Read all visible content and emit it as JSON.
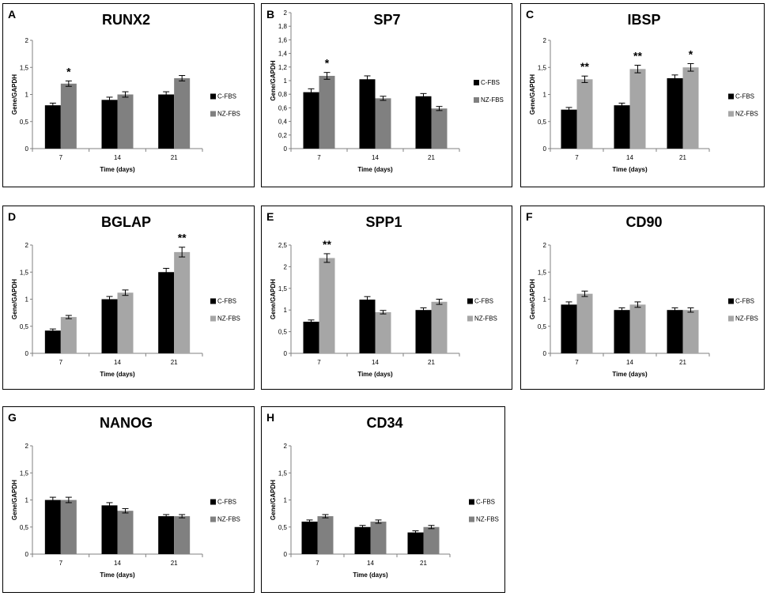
{
  "colors": {
    "c_fbs": "#000000",
    "nz_fbs_dark": "#808080",
    "nz_fbs_light": "#a6a6a6",
    "axis": "#808080"
  },
  "shared": {
    "ylabel": "Gene/GAPDH",
    "xlabel": "Time (days)",
    "categories": [
      "7",
      "14",
      "21"
    ],
    "series_names": [
      "C-FBS",
      "NZ-FBS"
    ]
  },
  "chart_data": [
    {
      "letter": "A",
      "title": "RUNX2",
      "type": "bar",
      "ylim": [
        0,
        2
      ],
      "yticks": [
        "0",
        "0,5",
        "1",
        "1,5",
        "2"
      ],
      "categories": [
        "7",
        "14",
        "21"
      ],
      "xlabel": "Time (days)",
      "ylabel": "Gene/GAPDH",
      "nz_color": "dark",
      "series": [
        {
          "name": "C-FBS",
          "values": [
            0.8,
            0.9,
            1.0
          ],
          "errors": [
            0.04,
            0.05,
            0.05
          ]
        },
        {
          "name": "NZ-FBS",
          "values": [
            1.2,
            1.0,
            1.3
          ],
          "errors": [
            0.05,
            0.05,
            0.05
          ]
        }
      ],
      "annotations": [
        "*",
        "",
        ""
      ]
    },
    {
      "letter": "B",
      "title": "SP7",
      "type": "bar",
      "ylim": [
        0,
        2
      ],
      "yticks": [
        "0",
        "0,2",
        "0,4",
        "0,6",
        "0,8",
        "1",
        "1,2",
        "1,4",
        "1,6",
        "1,8",
        "2"
      ],
      "categories": [
        "7",
        "14",
        "21"
      ],
      "xlabel": "Time (days)",
      "ylabel": "Gene/GAPDH",
      "nz_color": "dark",
      "series": [
        {
          "name": "C-FBS",
          "values": [
            0.83,
            1.02,
            0.77
          ],
          "errors": [
            0.05,
            0.05,
            0.04
          ]
        },
        {
          "name": "NZ-FBS",
          "values": [
            1.07,
            0.74,
            0.59
          ],
          "errors": [
            0.05,
            0.03,
            0.03
          ]
        }
      ],
      "annotations": [
        "*",
        "",
        ""
      ]
    },
    {
      "letter": "C",
      "title": "IBSP",
      "type": "bar",
      "ylim": [
        0,
        2
      ],
      "yticks": [
        "0",
        "0,5",
        "1",
        "1,5",
        "2"
      ],
      "categories": [
        "7",
        "14",
        "21"
      ],
      "xlabel": "Time (days)",
      "ylabel": "Gene/GAPDH",
      "nz_color": "light",
      "series": [
        {
          "name": "C-FBS",
          "values": [
            0.72,
            0.8,
            1.3
          ],
          "errors": [
            0.04,
            0.04,
            0.06
          ]
        },
        {
          "name": "NZ-FBS",
          "values": [
            1.28,
            1.47,
            1.5
          ],
          "errors": [
            0.06,
            0.07,
            0.07
          ]
        }
      ],
      "annotations": [
        "**",
        "**",
        "*"
      ]
    },
    {
      "letter": "D",
      "title": "BGLAP",
      "type": "bar",
      "ylim": [
        0,
        2
      ],
      "yticks": [
        "0",
        "0,5",
        "1",
        "1,5",
        "2"
      ],
      "categories": [
        "7",
        "14",
        "21"
      ],
      "xlabel": "Time (days)",
      "ylabel": "Gene/GAPDH",
      "nz_color": "light",
      "series": [
        {
          "name": "C-FBS",
          "values": [
            0.42,
            1.0,
            1.5
          ],
          "errors": [
            0.03,
            0.05,
            0.07
          ]
        },
        {
          "name": "NZ-FBS",
          "values": [
            0.67,
            1.12,
            1.87
          ],
          "errors": [
            0.03,
            0.05,
            0.09
          ]
        }
      ],
      "annotations": [
        "",
        "",
        "**"
      ]
    },
    {
      "letter": "E",
      "title": "SPP1",
      "type": "bar",
      "ylim": [
        0,
        2.5
      ],
      "yticks": [
        "0",
        "0,5",
        "1",
        "1,5",
        "2",
        "2,5"
      ],
      "categories": [
        "7",
        "14",
        "21"
      ],
      "xlabel": "Time (days)",
      "ylabel": "Gene/GAPDH",
      "nz_color": "light",
      "series": [
        {
          "name": "C-FBS",
          "values": [
            0.73,
            1.24,
            1.0
          ],
          "errors": [
            0.04,
            0.07,
            0.05
          ]
        },
        {
          "name": "NZ-FBS",
          "values": [
            2.2,
            0.95,
            1.19
          ],
          "errors": [
            0.1,
            0.04,
            0.06
          ]
        }
      ],
      "annotations": [
        "**",
        "",
        ""
      ]
    },
    {
      "letter": "F",
      "title": "CD90",
      "type": "bar",
      "ylim": [
        0,
        2
      ],
      "yticks": [
        "0",
        "0,5",
        "1",
        "1,5",
        "2"
      ],
      "categories": [
        "7",
        "14",
        "21"
      ],
      "xlabel": "Time (days)",
      "ylabel": "Gene/GAPDH",
      "nz_color": "light",
      "series": [
        {
          "name": "C-FBS",
          "values": [
            0.9,
            0.8,
            0.8
          ],
          "errors": [
            0.05,
            0.04,
            0.04
          ]
        },
        {
          "name": "NZ-FBS",
          "values": [
            1.1,
            0.9,
            0.8
          ],
          "errors": [
            0.05,
            0.05,
            0.04
          ]
        }
      ],
      "annotations": [
        "",
        "",
        ""
      ]
    },
    {
      "letter": "G",
      "title": "NANOG",
      "type": "bar",
      "ylim": [
        0,
        2
      ],
      "yticks": [
        "0",
        "0,5",
        "1",
        "1,5",
        "2"
      ],
      "categories": [
        "7",
        "14",
        "21"
      ],
      "xlabel": "Time (days)",
      "ylabel": "Gene/GAPDH",
      "nz_color": "dark",
      "series": [
        {
          "name": "C-FBS",
          "values": [
            1.0,
            0.9,
            0.7
          ],
          "errors": [
            0.05,
            0.05,
            0.03
          ]
        },
        {
          "name": "NZ-FBS",
          "values": [
            1.0,
            0.8,
            0.7
          ],
          "errors": [
            0.05,
            0.04,
            0.03
          ]
        }
      ],
      "annotations": [
        "",
        "",
        ""
      ]
    },
    {
      "letter": "H",
      "title": "CD34",
      "type": "bar",
      "ylim": [
        0,
        2
      ],
      "yticks": [
        "0",
        "0,5",
        "1",
        "1,5",
        "2"
      ],
      "categories": [
        "7",
        "14",
        "21"
      ],
      "xlabel": "Time (days)",
      "ylabel": "Gene/GAPDH",
      "nz_color": "dark",
      "series": [
        {
          "name": "C-FBS",
          "values": [
            0.6,
            0.5,
            0.4
          ],
          "errors": [
            0.03,
            0.03,
            0.03
          ]
        },
        {
          "name": "NZ-FBS",
          "values": [
            0.7,
            0.6,
            0.5
          ],
          "errors": [
            0.03,
            0.03,
            0.03
          ]
        }
      ],
      "annotations": [
        "",
        "",
        ""
      ]
    }
  ]
}
